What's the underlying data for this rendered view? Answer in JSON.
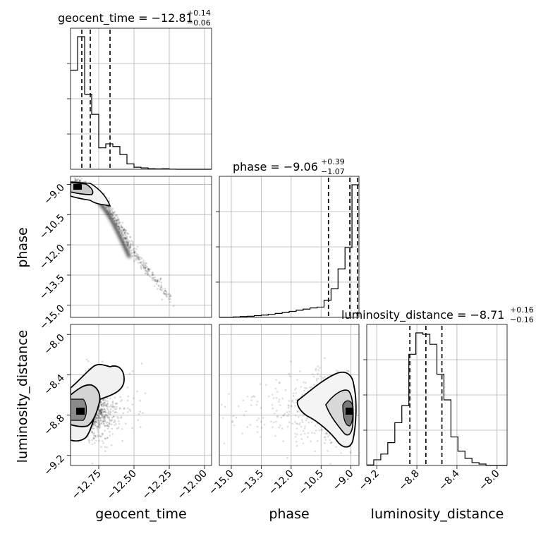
{
  "chart_data": {
    "type": "scatter",
    "title": "",
    "parameters": [
      {
        "name": "geocent_time",
        "label": "geocent_time",
        "range": [
          -12.95,
          -11.95
        ],
        "median": -12.81,
        "plus": "+0.14",
        "minus": "−0.06",
        "quantiles": [
          -12.87,
          -12.81,
          -12.67
        ]
      },
      {
        "name": "phase",
        "label": "phase",
        "range": [
          -15.6,
          -8.6
        ],
        "median": -9.06,
        "plus": "+0.39",
        "minus": "−1.07",
        "quantiles": [
          -10.13,
          -9.06,
          -8.67
        ]
      },
      {
        "name": "luminosity_distance",
        "label": "luminosity_distance",
        "range": [
          -9.3,
          -7.9
        ],
        "median": -8.71,
        "plus": "+0.16",
        "minus": "−0.16",
        "quantiles": [
          -8.87,
          -8.71,
          -8.55
        ]
      }
    ],
    "titles": [
      {
        "main": "geocent_time = −12.81",
        "sup": "+0.14",
        "sub": "−0.06"
      },
      {
        "main": "phase = −9.06",
        "sup": "+0.39",
        "sub": "−1.07"
      },
      {
        "main": "luminosity_distance = −8.71",
        "sup": "+0.16",
        "sub": "−0.16"
      }
    ],
    "ticks": {
      "geocent_time": {
        "values": [
          -12.75,
          -12.5,
          -12.25,
          -12.0
        ],
        "labels": [
          "−12.75",
          "−12.50",
          "−12.25",
          "−12.00"
        ]
      },
      "phase": {
        "values": [
          -15.0,
          -13.5,
          -12.0,
          -10.5,
          -9.0
        ],
        "labels": [
          "−15.0",
          "−13.5",
          "−12.0",
          "−10.5",
          "−9.0"
        ]
      },
      "luminosity_distance": {
        "values": [
          -9.2,
          -8.8,
          -8.4,
          -8.0
        ],
        "labels": [
          "−9.2",
          "−8.8",
          "−8.4",
          "−8.0"
        ]
      }
    },
    "hist_geocent_time": {
      "edges": [
        -12.95,
        -12.9,
        -12.85,
        -12.8,
        -12.75,
        -12.7,
        -12.65,
        -12.6,
        -12.55,
        -12.5,
        -12.45,
        -12.4,
        -12.35,
        -12.3,
        -12.25,
        -12.2,
        -12.15,
        -12.1,
        -12.05,
        -12.0,
        -11.95
      ],
      "counts": [
        0.74,
        0.99,
        0.56,
        0.41,
        0.16,
        0.19,
        0.17,
        0.11,
        0.04,
        0.015,
        0.01,
        0.004,
        0.003,
        0.004,
        0.001,
        0,
        0,
        0,
        0,
        0
      ]
    },
    "hist_phase": {
      "edges": [
        -15.6,
        -15.25,
        -14.9,
        -14.55,
        -14.2,
        -13.85,
        -13.5,
        -13.15,
        -12.8,
        -12.45,
        -12.1,
        -11.75,
        -11.4,
        -11.05,
        -10.7,
        -10.35,
        -10.0,
        -9.65,
        -9.3,
        -8.95,
        -8.6
      ],
      "counts": [
        0,
        0,
        0.003,
        0.006,
        0.008,
        0.012,
        0.016,
        0.022,
        0.028,
        0.034,
        0.042,
        0.05,
        0.058,
        0.066,
        0.072,
        0.12,
        0.2,
        0.34,
        0.49,
        0.93
      ]
    },
    "hist_luminosity_distance": {
      "edges": [
        -9.3,
        -9.23,
        -9.16,
        -9.09,
        -9.02,
        -8.95,
        -8.88,
        -8.81,
        -8.74,
        -8.67,
        -8.6,
        -8.53,
        -8.46,
        -8.39,
        -8.32,
        -8.25,
        -8.18,
        -8.11,
        -8.04,
        -7.97,
        -7.9
      ],
      "counts": [
        0.004,
        0.04,
        0.08,
        0.16,
        0.3,
        0.42,
        0.78,
        0.93,
        0.92,
        0.85,
        0.64,
        0.46,
        0.2,
        0.1,
        0.05,
        0.02,
        0.01,
        0,
        0,
        0
      ]
    },
    "mode": {
      "geocent_time": -12.85,
      "phase": -8.95,
      "luminosity_distance": -8.73
    },
    "scatter_description_points": {
      "geocent_time_vs_phase": [
        [
          -12.92,
          -8.95
        ],
        [
          -12.85,
          -9.1
        ],
        [
          -12.78,
          -9.4
        ],
        [
          -12.7,
          -9.9
        ],
        [
          -12.66,
          -10.4
        ],
        [
          -12.6,
          -11.0
        ],
        [
          -12.55,
          -11.8
        ],
        [
          -12.5,
          -12.5
        ],
        [
          -12.4,
          -13.3
        ],
        [
          -12.32,
          -14.0
        ],
        [
          -12.22,
          -14.9
        ]
      ]
    },
    "grid": true,
    "legend": "none"
  }
}
